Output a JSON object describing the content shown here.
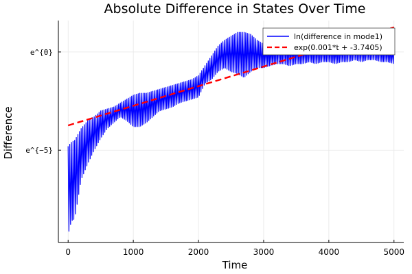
{
  "chart_data": {
    "type": "line",
    "title": "Absolute Difference in States Over Time",
    "xlabel": "Time",
    "ylabel": "Difference",
    "xlim": [
      -150,
      5150
    ],
    "ylim": [
      -9.7,
      1.6
    ],
    "y_scale": "log (natural)",
    "grid": true,
    "legend_position": "top-right",
    "x_ticks": [
      0,
      1000,
      2000,
      3000,
      4000,
      5000
    ],
    "y_ticks": [
      {
        "value": 0,
        "label": "e^{0}"
      },
      {
        "value": -5,
        "label": "e^{−5}"
      }
    ],
    "series": [
      {
        "name": "ln(difference in mode1)",
        "color": "#0000ff",
        "style": "solid",
        "envelope": {
          "x": [
            0,
            50,
            100,
            200,
            300,
            400,
            500,
            600,
            700,
            800,
            900,
            1000,
            1100,
            1200,
            1300,
            1400,
            1500,
            1600,
            1700,
            1800,
            1900,
            2000,
            2100,
            2200,
            2300,
            2400,
            2500,
            2600,
            2700,
            2800,
            2900,
            3000,
            3100,
            3200,
            3300,
            3400,
            3500,
            3600,
            3700,
            3800,
            3900,
            4000,
            4100,
            4200,
            4300,
            4400,
            4500,
            4600,
            4700,
            4800,
            4900,
            5000
          ],
          "upper": [
            -4.8,
            -4.6,
            -4.5,
            -3.9,
            -3.5,
            -3.3,
            -3.0,
            -2.9,
            -2.8,
            -2.6,
            -2.4,
            -2.2,
            -2.1,
            -2.1,
            -2.0,
            -1.9,
            -1.8,
            -1.7,
            -1.6,
            -1.5,
            -1.4,
            -1.2,
            -0.7,
            -0.2,
            0.3,
            0.6,
            0.8,
            1.0,
            1.0,
            0.9,
            0.6,
            0.4,
            0.3,
            0.4,
            0.5,
            0.4,
            0.3,
            0.3,
            0.3,
            0.4,
            0.3,
            0.3,
            0.2,
            0.3,
            0.4,
            0.3,
            0.3,
            0.2,
            0.3,
            0.3,
            0.2,
            0.1
          ],
          "lower": [
            -9.3,
            -8.6,
            -8.5,
            -6.5,
            -5.7,
            -5.0,
            -4.4,
            -3.9,
            -3.6,
            -3.3,
            -3.5,
            -3.8,
            -3.8,
            -3.6,
            -3.3,
            -3.0,
            -2.9,
            -2.8,
            -2.6,
            -2.5,
            -2.4,
            -2.3,
            -1.6,
            -1.4,
            -1.0,
            -0.8,
            -1.0,
            -1.1,
            -1.3,
            -1.0,
            -0.8,
            -0.8,
            -0.7,
            -0.6,
            -0.6,
            -0.7,
            -0.6,
            -0.6,
            -0.5,
            -0.6,
            -0.5,
            -0.5,
            -0.6,
            -0.5,
            -0.5,
            -0.4,
            -0.5,
            -0.4,
            -0.4,
            -0.5,
            -0.5,
            -0.6
          ]
        }
      },
      {
        "name": "exp(0.001*t + -3.7405)",
        "color": "#ff0000",
        "style": "dashed",
        "x": [
          0,
          5000
        ],
        "y": [
          -3.7405,
          1.2595
        ]
      }
    ]
  }
}
